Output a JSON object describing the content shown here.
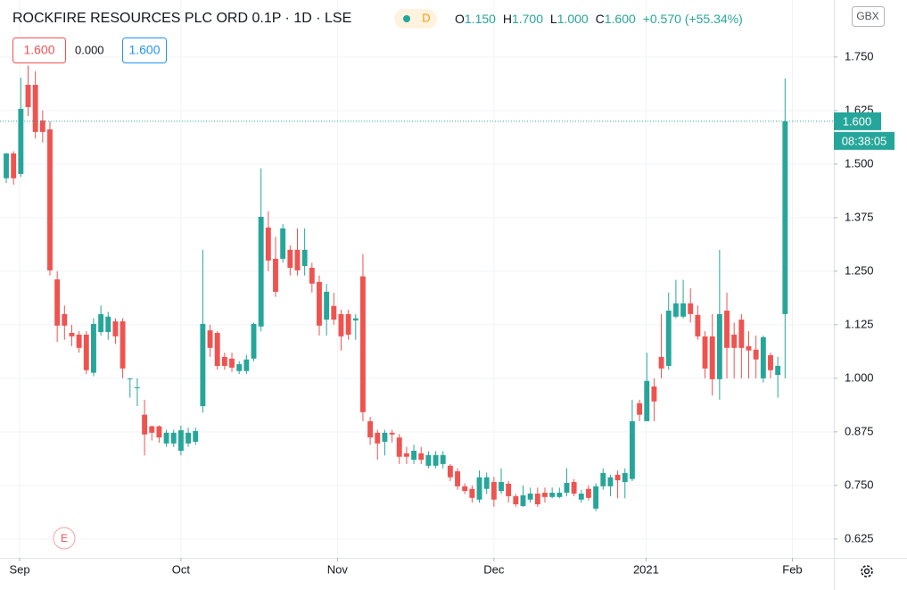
{
  "header": {
    "title": "ROCKFIRE RESOURCES PLC ORD 0.1P · 1D · LSE",
    "badge": "D",
    "readout": [
      {
        "key": "O",
        "value": "1.150"
      },
      {
        "key": "H",
        "value": "1.700"
      },
      {
        "key": "L",
        "value": "1.000"
      },
      {
        "key": "C",
        "value": "1.600"
      }
    ],
    "change": "+0.570 (+55.34%)",
    "indicator": [
      "1.600",
      "0.000",
      "1.600"
    ],
    "currency": "GBX",
    "event_marker": "E"
  },
  "chart_data": {
    "type": "candlestick",
    "up_color": "#26a69a",
    "down_color": "#ef5350",
    "open": [
      1.467,
      1.525,
      1.477,
      1.685,
      1.685,
      1.602,
      1.581,
      1.231,
      1.15,
      1.106,
      1.102,
      1.102,
      1.013,
      1.108,
      1.108,
      1.133,
      1.133,
      0.999,
      0.977,
      0.915,
      0.888,
      0.888,
      0.848,
      0.848,
      0.831,
      0.848,
      0.852,
      0.935,
      1.112,
      1.106,
      1.05,
      1.046,
      1.017,
      1.017,
      1.046,
      1.121,
      1.352,
      1.279,
      1.279,
      1.3,
      1.3,
      1.262,
      1.258,
      1.225,
      1.137,
      1.169,
      1.15,
      1.15,
      1.135,
      1.238,
      0.9,
      0.873,
      0.852,
      0.873,
      0.862,
      0.825,
      0.81,
      0.825,
      0.796,
      0.796,
      0.8,
      0.796,
      0.783,
      0.748,
      0.742,
      0.717,
      0.742,
      0.758,
      0.737,
      0.754,
      0.725,
      0.702,
      0.717,
      0.731,
      0.733,
      0.723,
      0.723,
      0.733,
      0.758,
      0.717,
      0.742,
      0.696,
      0.748,
      0.748,
      0.775,
      0.758,
      0.765,
      0.942,
      0.9,
      0.981,
      1.05,
      1.029,
      1.144,
      1.144,
      1.175,
      1.148,
      1.098,
      1.098,
      0.998,
      1.158,
      1.102,
      1.137,
      1.075,
      1.067,
      1.0,
      1.054,
      1.008,
      1.15
    ],
    "high": [
      1.525,
      1.53,
      1.702,
      1.73,
      1.717,
      1.625,
      1.6,
      1.25,
      1.17,
      1.125,
      1.11,
      1.11,
      1.14,
      1.17,
      1.155,
      1.14,
      1.14,
      1.0,
      1.0,
      0.95,
      0.89,
      0.89,
      0.88,
      0.88,
      0.89,
      0.885,
      0.885,
      1.3,
      1.125,
      1.11,
      1.06,
      1.06,
      1.04,
      1.055,
      1.13,
      1.49,
      1.39,
      1.33,
      1.36,
      1.31,
      1.35,
      1.35,
      1.27,
      1.24,
      1.22,
      1.2,
      1.16,
      1.16,
      1.15,
      1.29,
      0.91,
      0.88,
      0.88,
      0.88,
      0.87,
      0.84,
      0.845,
      0.84,
      0.83,
      0.83,
      0.83,
      0.8,
      0.79,
      0.755,
      0.75,
      0.785,
      0.78,
      0.77,
      0.79,
      0.76,
      0.73,
      0.75,
      0.745,
      0.745,
      0.745,
      0.745,
      0.745,
      0.79,
      0.765,
      0.74,
      0.75,
      0.755,
      0.79,
      0.775,
      0.785,
      0.79,
      0.95,
      0.95,
      1.06,
      1.0,
      1.15,
      1.2,
      1.23,
      1.23,
      1.21,
      1.17,
      1.11,
      1.15,
      1.3,
      1.2,
      1.13,
      1.15,
      1.11,
      1.1,
      1.1,
      1.06,
      1.05,
      1.7
    ],
    "low": [
      1.456,
      1.452,
      1.47,
      1.612,
      1.56,
      1.55,
      1.24,
      1.085,
      1.09,
      1.075,
      1.06,
      1.01,
      1.005,
      1.1,
      1.09,
      1.08,
      1.0,
      0.955,
      0.935,
      0.82,
      0.855,
      0.85,
      0.84,
      0.84,
      0.82,
      0.84,
      0.845,
      0.92,
      1.05,
      1.02,
      1.02,
      1.015,
      1.01,
      1.01,
      1.04,
      1.11,
      1.25,
      1.19,
      1.27,
      1.24,
      1.24,
      1.24,
      1.2,
      1.1,
      1.1,
      1.125,
      1.065,
      1.09,
      1.09,
      0.9,
      0.845,
      0.81,
      0.82,
      0.85,
      0.8,
      0.8,
      0.8,
      0.8,
      0.79,
      0.79,
      0.79,
      0.76,
      0.74,
      0.73,
      0.71,
      0.71,
      0.73,
      0.7,
      0.73,
      0.71,
      0.7,
      0.7,
      0.71,
      0.7,
      0.71,
      0.72,
      0.72,
      0.725,
      0.725,
      0.71,
      0.715,
      0.69,
      0.74,
      0.725,
      0.72,
      0.72,
      0.76,
      0.9,
      0.9,
      0.9,
      1.0,
      1.02,
      1.14,
      1.14,
      1.13,
      1.09,
      1.0,
      0.96,
      0.95,
      1.0,
      1.0,
      1.0,
      1.0,
      1.0,
      0.99,
      1.0,
      0.955,
      1.0
    ],
    "close": [
      1.525,
      1.467,
      1.629,
      1.633,
      1.575,
      1.575,
      1.252,
      1.123,
      1.123,
      1.098,
      1.071,
      1.019,
      1.127,
      1.15,
      1.144,
      1.098,
      1.023,
      1.0,
      0.979,
      0.869,
      0.873,
      0.862,
      0.873,
      0.873,
      0.879,
      0.873,
      0.877,
      1.127,
      1.071,
      1.029,
      1.029,
      1.025,
      1.033,
      1.044,
      1.127,
      1.377,
      1.275,
      1.202,
      1.35,
      1.258,
      1.252,
      1.3,
      1.221,
      1.123,
      1.202,
      1.137,
      1.098,
      1.102,
      1.14,
      0.921,
      0.862,
      0.848,
      0.873,
      0.869,
      0.817,
      0.817,
      0.831,
      0.81,
      0.821,
      0.821,
      0.821,
      0.769,
      0.748,
      0.737,
      0.721,
      0.769,
      0.769,
      0.717,
      0.758,
      0.725,
      0.706,
      0.727,
      0.731,
      0.706,
      0.723,
      0.733,
      0.733,
      0.756,
      0.731,
      0.731,
      0.721,
      0.748,
      0.779,
      0.769,
      0.762,
      0.779,
      0.9,
      0.915,
      0.994,
      0.946,
      1.023,
      1.158,
      1.175,
      1.175,
      1.15,
      1.098,
      1.023,
      0.998,
      1.15,
      1.071,
      1.071,
      1.071,
      1.065,
      1.044,
      1.096,
      1.019,
      1.029,
      1.6
    ],
    "xlim": [
      -0.86,
      113.7
    ],
    "xticks": [
      {
        "value": 1.84,
        "label": "Sep"
      },
      {
        "value": 24.0,
        "label": "Oct"
      },
      {
        "value": 45.5,
        "label": "Nov"
      },
      {
        "value": 67.0,
        "label": "Dec"
      },
      {
        "value": 87.9,
        "label": "2021"
      },
      {
        "value": 108.0,
        "label": "Feb"
      }
    ],
    "ylim": [
      0.581,
      1.883
    ],
    "yticks": [
      0.625,
      {
        "value": 0.75,
        "label": "0.750"
      },
      {
        "value": 0.875,
        "label": "0.875"
      },
      {
        "value": 1.0,
        "label": "1.000"
      },
      {
        "value": 1.125,
        "label": "1.125"
      },
      {
        "value": 1.25,
        "label": "1.250"
      },
      {
        "value": 1.375,
        "label": "1.375"
      },
      {
        "value": 1.5,
        "label": "1.500"
      },
      1.625,
      {
        "value": 1.75,
        "label": "1.750"
      }
    ],
    "grid": true,
    "last_price": {
      "value": 1.6,
      "label": "1.600"
    },
    "countdown": "08:38:05"
  }
}
